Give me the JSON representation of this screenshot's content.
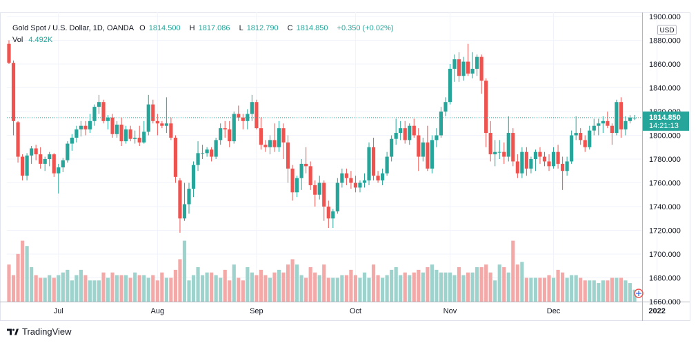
{
  "header": {
    "title": "Gold Spot / U.S. Dollar, 1D, OANDA",
    "open_label": "O",
    "open": "1814.500",
    "high_label": "H",
    "high": "1817.086",
    "low_label": "L",
    "low": "1812.790",
    "close_label": "C",
    "close": "1814.850",
    "change": "+0.350 (+0.02%)",
    "vol_label": "Vol",
    "vol": "4.492K"
  },
  "price_axis": {
    "currency": "USD",
    "ticks": [
      "1900.000",
      "1880.000",
      "1860.000",
      "1840.000",
      "1820.000",
      "1800.000",
      "1780.000",
      "1760.000",
      "1740.000",
      "1720.000",
      "1700.000",
      "1680.000",
      "1660.000"
    ],
    "last_price": "1814.850",
    "countdown": "14:21:13"
  },
  "time_axis": {
    "labels": [
      "Jul",
      "Aug",
      "Sep",
      "Oct",
      "Nov",
      "Dec",
      "2022"
    ]
  },
  "brand": "TradingView",
  "colors": {
    "up": "#26a69a",
    "down": "#ef5350",
    "up_vol": "#9ed3cd",
    "down_vol": "#f3a9a8",
    "grid": "#f0f3fa"
  },
  "chart_data": {
    "type": "candlestick",
    "symbol": "Gold Spot / U.S. Dollar",
    "interval": "1D",
    "ylim": [
      1660,
      1900
    ],
    "price_ticks": [
      1900,
      1880,
      1860,
      1840,
      1820,
      1800,
      1780,
      1760,
      1740,
      1720,
      1700,
      1680,
      1660
    ],
    "month_labels": [
      {
        "label": "Jul",
        "index": 11
      },
      {
        "label": "Aug",
        "index": 33
      },
      {
        "label": "Sep",
        "index": 55
      },
      {
        "label": "Oct",
        "index": 77
      },
      {
        "label": "Nov",
        "index": 98
      },
      {
        "label": "Dec",
        "index": 121
      },
      {
        "label": "2022",
        "index": 144
      }
    ],
    "last_price": 1814.85,
    "candles": [
      [
        1877,
        1880,
        1860,
        1861,
        14
      ],
      [
        1861,
        1863,
        1800,
        1812,
        10
      ],
      [
        1811,
        1812,
        1777,
        1782,
        18
      ],
      [
        1782,
        1784,
        1762,
        1766,
        23
      ],
      [
        1766,
        1785,
        1762,
        1783,
        21
      ],
      [
        1783,
        1791,
        1776,
        1789,
        13
      ],
      [
        1789,
        1792,
        1779,
        1784,
        10
      ],
      [
        1784,
        1790,
        1772,
        1776,
        9
      ],
      [
        1776,
        1782,
        1770,
        1780,
        9
      ],
      [
        1780,
        1786,
        1774,
        1784,
        10
      ],
      [
        1784,
        1785,
        1765,
        1768,
        9
      ],
      [
        1768,
        1776,
        1751,
        1773,
        10
      ],
      [
        1773,
        1781,
        1769,
        1779,
        11
      ],
      [
        1779,
        1795,
        1777,
        1793,
        12
      ],
      [
        1793,
        1801,
        1787,
        1798,
        8
      ],
      [
        1798,
        1808,
        1794,
        1805,
        10
      ],
      [
        1805,
        1812,
        1799,
        1808,
        12
      ],
      [
        1808,
        1812,
        1800,
        1805,
        10
      ],
      [
        1805,
        1818,
        1802,
        1812,
        8
      ],
      [
        1812,
        1826,
        1808,
        1824,
        8
      ],
      [
        1824,
        1834,
        1818,
        1828,
        8
      ],
      [
        1828,
        1830,
        1810,
        1812,
        11
      ],
      [
        1812,
        1817,
        1805,
        1815,
        9
      ],
      [
        1815,
        1818,
        1798,
        1801,
        11
      ],
      [
        1801,
        1812,
        1798,
        1809,
        10
      ],
      [
        1809,
        1815,
        1791,
        1795,
        10
      ],
      [
        1795,
        1808,
        1793,
        1805,
        10
      ],
      [
        1805,
        1808,
        1795,
        1797,
        9
      ],
      [
        1797,
        1804,
        1793,
        1798,
        11
      ],
      [
        1798,
        1808,
        1791,
        1794,
        10
      ],
      [
        1794,
        1812,
        1793,
        1803,
        10
      ],
      [
        1803,
        1834,
        1800,
        1826,
        9
      ],
      [
        1826,
        1830,
        1810,
        1812,
        10
      ],
      [
        1812,
        1818,
        1800,
        1810,
        8
      ],
      [
        1810,
        1812,
        1806,
        1808,
        11
      ],
      [
        1808,
        1832,
        1802,
        1810,
        9
      ],
      [
        1810,
        1815,
        1796,
        1798,
        9
      ],
      [
        1798,
        1800,
        1760,
        1765,
        12
      ],
      [
        1762,
        1764,
        1718,
        1730,
        16
      ],
      [
        1730,
        1760,
        1728,
        1742,
        23
      ],
      [
        1742,
        1760,
        1734,
        1755,
        8
      ],
      [
        1755,
        1778,
        1748,
        1775,
        10
      ],
      [
        1775,
        1795,
        1770,
        1785,
        13
      ],
      [
        1785,
        1792,
        1780,
        1785,
        10
      ],
      [
        1785,
        1790,
        1782,
        1788,
        11
      ],
      [
        1788,
        1790,
        1778,
        1782,
        11
      ],
      [
        1782,
        1798,
        1780,
        1796,
        10
      ],
      [
        1796,
        1810,
        1792,
        1806,
        9
      ],
      [
        1806,
        1812,
        1798,
        1805,
        12
      ],
      [
        1805,
        1812,
        1790,
        1795,
        8
      ],
      [
        1795,
        1820,
        1793,
        1818,
        14
      ],
      [
        1818,
        1825,
        1812,
        1815,
        9
      ],
      [
        1815,
        1818,
        1805,
        1812,
        8
      ],
      [
        1812,
        1822,
        1805,
        1818,
        13
      ],
      [
        1818,
        1834,
        1812,
        1828,
        11
      ],
      [
        1828,
        1830,
        1805,
        1806,
        10
      ],
      [
        1806,
        1815,
        1788,
        1792,
        12
      ],
      [
        1792,
        1796,
        1786,
        1790,
        10
      ],
      [
        1790,
        1800,
        1784,
        1796,
        9
      ],
      [
        1796,
        1810,
        1786,
        1790,
        11
      ],
      [
        1790,
        1812,
        1786,
        1806,
        12
      ],
      [
        1806,
        1810,
        1780,
        1794,
        11
      ],
      [
        1794,
        1800,
        1760,
        1772,
        14
      ],
      [
        1772,
        1775,
        1745,
        1752,
        16
      ],
      [
        1752,
        1766,
        1748,
        1764,
        14
      ],
      [
        1764,
        1780,
        1754,
        1776,
        10
      ],
      [
        1776,
        1790,
        1768,
        1774,
        9
      ],
      [
        1774,
        1778,
        1754,
        1758,
        13
      ],
      [
        1758,
        1762,
        1740,
        1750,
        11
      ],
      [
        1750,
        1766,
        1746,
        1760,
        10
      ],
      [
        1760,
        1762,
        1728,
        1740,
        14
      ],
      [
        1740,
        1745,
        1722,
        1730,
        9
      ],
      [
        1730,
        1738,
        1722,
        1736,
        9
      ],
      [
        1736,
        1764,
        1734,
        1760,
        9
      ],
      [
        1760,
        1772,
        1756,
        1768,
        10
      ],
      [
        1768,
        1772,
        1758,
        1764,
        10
      ],
      [
        1764,
        1770,
        1755,
        1760,
        12
      ],
      [
        1760,
        1766,
        1752,
        1756,
        10
      ],
      [
        1756,
        1762,
        1752,
        1760,
        9
      ],
      [
        1760,
        1768,
        1756,
        1762,
        11
      ],
      [
        1762,
        1794,
        1758,
        1790,
        9
      ],
      [
        1790,
        1798,
        1762,
        1766,
        14
      ],
      [
        1766,
        1770,
        1760,
        1762,
        10
      ],
      [
        1762,
        1772,
        1758,
        1768,
        9
      ],
      [
        1768,
        1786,
        1766,
        1782,
        10
      ],
      [
        1782,
        1800,
        1778,
        1797,
        12
      ],
      [
        1797,
        1814,
        1792,
        1802,
        13
      ],
      [
        1802,
        1812,
        1796,
        1806,
        10
      ],
      [
        1806,
        1812,
        1793,
        1796,
        11
      ],
      [
        1796,
        1810,
        1792,
        1808,
        10
      ],
      [
        1808,
        1814,
        1798,
        1800,
        11
      ],
      [
        1800,
        1806,
        1770,
        1782,
        12
      ],
      [
        1782,
        1798,
        1778,
        1794,
        11
      ],
      [
        1794,
        1808,
        1770,
        1772,
        13
      ],
      [
        1772,
        1800,
        1768,
        1796,
        14
      ],
      [
        1796,
        1806,
        1790,
        1800,
        12
      ],
      [
        1800,
        1824,
        1798,
        1820,
        11
      ],
      [
        1820,
        1832,
        1816,
        1828,
        11
      ],
      [
        1828,
        1860,
        1826,
        1856,
        11
      ],
      [
        1856,
        1868,
        1845,
        1864,
        10
      ],
      [
        1864,
        1870,
        1845,
        1850,
        13
      ],
      [
        1850,
        1866,
        1846,
        1862,
        10
      ],
      [
        1862,
        1877,
        1850,
        1852,
        11
      ],
      [
        1852,
        1870,
        1848,
        1856,
        11
      ],
      [
        1856,
        1868,
        1850,
        1866,
        13
      ],
      [
        1866,
        1868,
        1835,
        1846,
        13
      ],
      [
        1846,
        1848,
        1790,
        1802,
        14
      ],
      [
        1802,
        1812,
        1778,
        1784,
        11
      ],
      [
        1784,
        1796,
        1774,
        1786,
        8
      ],
      [
        1786,
        1796,
        1780,
        1786,
        14
      ],
      [
        1786,
        1794,
        1776,
        1782,
        13
      ],
      [
        1782,
        1816,
        1778,
        1802,
        11
      ],
      [
        1802,
        1806,
        1774,
        1778,
        23
      ],
      [
        1778,
        1784,
        1764,
        1768,
        14
      ],
      [
        1768,
        1790,
        1764,
        1786,
        15
      ],
      [
        1786,
        1790,
        1766,
        1772,
        9
      ],
      [
        1772,
        1782,
        1768,
        1780,
        9
      ],
      [
        1780,
        1788,
        1770,
        1786,
        9
      ],
      [
        1786,
        1790,
        1776,
        1782,
        9
      ],
      [
        1782,
        1786,
        1774,
        1778,
        9
      ],
      [
        1778,
        1784,
        1770,
        1774,
        10
      ],
      [
        1774,
        1790,
        1772,
        1786,
        9
      ],
      [
        1786,
        1792,
        1772,
        1776,
        12
      ],
      [
        1776,
        1782,
        1754,
        1770,
        11
      ],
      [
        1770,
        1782,
        1766,
        1778,
        9
      ],
      [
        1778,
        1804,
        1776,
        1800,
        10
      ],
      [
        1800,
        1816,
        1796,
        1802,
        10
      ],
      [
        1802,
        1806,
        1792,
        1796,
        9
      ],
      [
        1796,
        1800,
        1786,
        1790,
        8
      ],
      [
        1790,
        1808,
        1788,
        1804,
        8
      ],
      [
        1804,
        1814,
        1800,
        1808,
        8
      ],
      [
        1808,
        1814,
        1800,
        1810,
        7
      ],
      [
        1810,
        1816,
        1802,
        1812,
        8
      ],
      [
        1812,
        1820,
        1806,
        1808,
        8
      ],
      [
        1808,
        1810,
        1792,
        1802,
        9
      ],
      [
        1802,
        1830,
        1800,
        1828,
        9
      ],
      [
        1828,
        1832,
        1798,
        1805,
        9
      ],
      [
        1805,
        1816,
        1800,
        1812,
        8
      ],
      [
        1812,
        1817,
        1810,
        1815,
        7
      ],
      [
        1814.5,
        1817.1,
        1812.8,
        1814.85,
        4.5
      ]
    ]
  }
}
